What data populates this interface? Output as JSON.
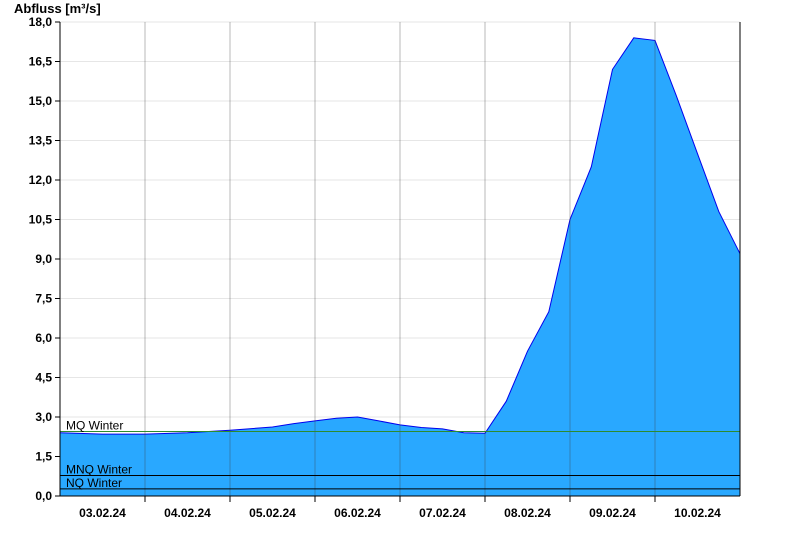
{
  "colors": {
    "area_fill": "#29a8ff",
    "area_stroke": "#0000ee",
    "mq_line": "#2e8b2e",
    "ref_line": "#000000",
    "grid": "#e6e6e6",
    "axis": "#000000",
    "background": "#ffffff"
  },
  "chart_data": {
    "type": "area",
    "ylabel": "Abfluss [m³/s]",
    "ylim": [
      0,
      18
    ],
    "yticks": [
      0,
      1.5,
      3,
      4.5,
      6,
      7.5,
      9,
      10.5,
      12,
      13.5,
      15,
      16.5,
      18
    ],
    "ytick_labels": [
      "0,0",
      "1,5",
      "3,0",
      "4,5",
      "6,0",
      "7,5",
      "9,0",
      "10,5",
      "12,0",
      "13,5",
      "15,0",
      "16,5",
      "18,0"
    ],
    "xlim": [
      "2024-02-02T12:00",
      "2024-02-10T12:00"
    ],
    "x_ticks": [
      "2024-02-03",
      "2024-02-04",
      "2024-02-05",
      "2024-02-06",
      "2024-02-07",
      "2024-02-08",
      "2024-02-09",
      "2024-02-10"
    ],
    "x_tick_labels": [
      "03.02.24",
      "04.02.24",
      "05.02.24",
      "06.02.24",
      "07.02.24",
      "08.02.24",
      "09.02.24",
      "10.02.24"
    ],
    "grid": "horizontal",
    "series": [
      {
        "x": [
          "2024-02-02T12:00",
          "2024-02-03T00:00",
          "2024-02-03T12:00",
          "2024-02-04T00:00",
          "2024-02-04T12:00",
          "2024-02-05T00:00",
          "2024-02-05T06:00",
          "2024-02-05T12:00",
          "2024-02-05T18:00",
          "2024-02-06T00:00",
          "2024-02-06T06:00",
          "2024-02-06T12:00",
          "2024-02-06T18:00",
          "2024-02-07T00:00",
          "2024-02-07T06:00",
          "2024-02-07T12:00",
          "2024-02-07T18:00",
          "2024-02-08T00:00",
          "2024-02-08T06:00",
          "2024-02-08T12:00",
          "2024-02-08T18:00",
          "2024-02-09T00:00",
          "2024-02-09T06:00",
          "2024-02-09T12:00",
          "2024-02-09T18:00",
          "2024-02-10T00:00",
          "2024-02-10T06:00",
          "2024-02-10T12:00"
        ],
        "values": [
          2.4,
          2.35,
          2.35,
          2.4,
          2.5,
          2.62,
          2.75,
          2.85,
          2.95,
          3.0,
          2.85,
          2.7,
          2.6,
          2.55,
          2.4,
          2.38,
          3.6,
          5.5,
          7.0,
          10.5,
          12.5,
          16.2,
          17.4,
          17.3,
          15.2,
          13.0,
          10.8,
          9.2
        ]
      }
    ],
    "reference_lines": [
      {
        "label": "MQ Winter",
        "value": 2.45
      },
      {
        "label": "MNQ Winter",
        "value": 0.78
      },
      {
        "label": "NQ Winter",
        "value": 0.27
      }
    ]
  }
}
